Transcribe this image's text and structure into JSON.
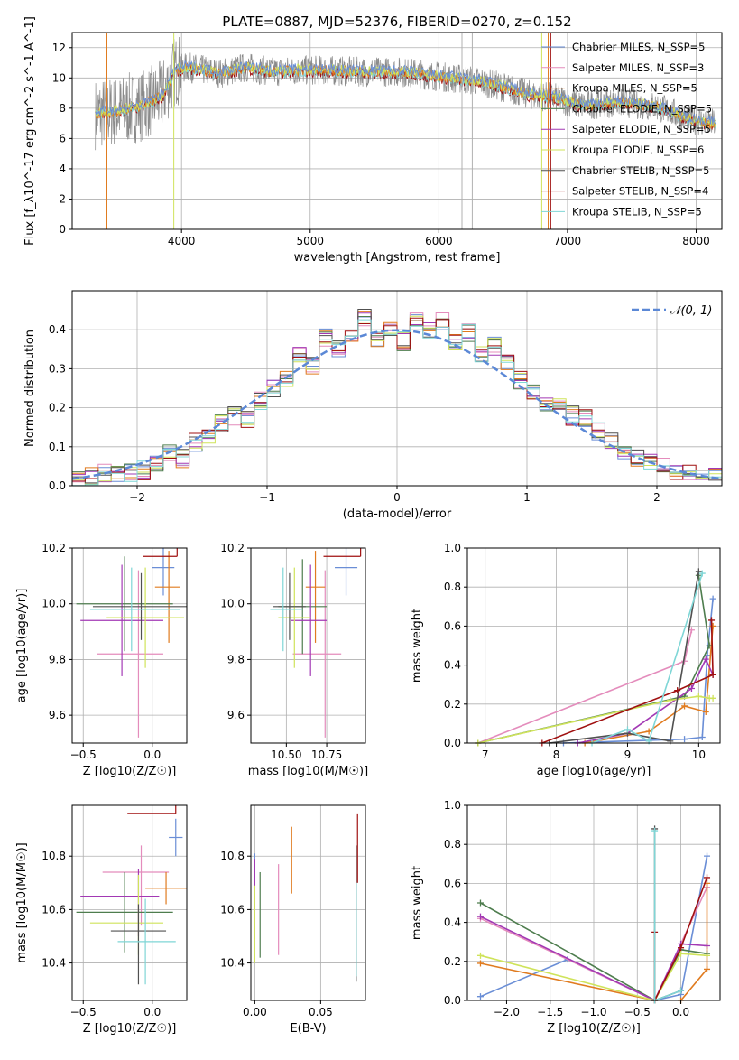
{
  "title": "PLATE=0887, MJD=52376, FIBERID=0270, z=0.152",
  "colors": [
    "#6a8ed6",
    "#e48cbc",
    "#e07b1f",
    "#4e7d4e",
    "#a238b4",
    "#cfe35a",
    "#505050",
    "#a01010",
    "#7fd6d6"
  ],
  "chart_data": [
    {
      "name": "spectrum",
      "type": "line",
      "xlabel": "wavelength [Angstrom, rest frame]",
      "ylabel": "Flux [f_λ10^-17 erg cm^-2 s^-1 A^-1]",
      "xlim": [
        3150,
        8200
      ],
      "ylim": [
        0,
        13
      ],
      "xticks": [
        4000,
        5000,
        6000,
        7000,
        8000
      ],
      "yticks": [
        0,
        2,
        4,
        6,
        8,
        10,
        12
      ],
      "legend": [
        "Chabrier MILES, N_SSP=5",
        "Salpeter MILES, N_SSP=3",
        "Kroupa MILES, N_SSP=5",
        "Chabrier ELODIE, N_SSP=5",
        "Salpeter ELODIE, N_SSP=5",
        "Kroupa ELODIE, N_SSP=6",
        "Chabrier STELIB, N_SSP=5",
        "Salpeter STELIB, N_SSP=4",
        "Kroupa STELIB, N_SSP=5"
      ],
      "legend_position": "right",
      "continuum": {
        "x": [
          3300,
          3500,
          3700,
          3850,
          3950,
          4050,
          4300,
          4500,
          4700,
          4900,
          5100,
          5400,
          5700,
          6000,
          6300,
          6500,
          6700,
          6900,
          7100,
          7400,
          7700,
          7900,
          8100
        ],
        "y": [
          7.6,
          7.8,
          8.2,
          8.8,
          10.5,
          10.7,
          10.3,
          10.7,
          10.4,
          10.5,
          10.5,
          10.4,
          10.4,
          10.1,
          9.8,
          9.4,
          8.9,
          8.7,
          8.2,
          8.4,
          8.1,
          7.4,
          7.0
        ]
      }
    },
    {
      "name": "residual_histogram",
      "type": "histogram",
      "xlabel": "(data-model)/error",
      "ylabel": "Normed distribution",
      "xlim": [
        -2.5,
        2.5
      ],
      "ylim": [
        0,
        0.5
      ],
      "xticks": [
        -2,
        -1,
        0,
        1,
        2
      ],
      "yticks": [
        0.0,
        0.1,
        0.2,
        0.3,
        0.4
      ],
      "legend": [
        "𝒩(0, 1)"
      ],
      "legend_position": "top-right",
      "bin_edges": [
        -2.5,
        -2.4,
        -2.3,
        -2.2,
        -2.1,
        -2.0,
        -1.9,
        -1.8,
        -1.7,
        -1.6,
        -1.5,
        -1.4,
        -1.3,
        -1.2,
        -1.1,
        -1.0,
        -0.9,
        -0.8,
        -0.7,
        -0.6,
        -0.5,
        -0.4,
        -0.3,
        -0.2,
        -0.1,
        0.0,
        0.1,
        0.2,
        0.3,
        0.4,
        0.5,
        0.6,
        0.7,
        0.8,
        0.9,
        1.0,
        1.1,
        1.2,
        1.3,
        1.4,
        1.5,
        1.6,
        1.7,
        1.8,
        1.9,
        2.0,
        2.1,
        2.2,
        2.3,
        2.4,
        2.5
      ],
      "base_density": [
        0.02,
        0.025,
        0.03,
        0.035,
        0.035,
        0.04,
        0.06,
        0.08,
        0.07,
        0.11,
        0.13,
        0.16,
        0.18,
        0.17,
        0.22,
        0.25,
        0.27,
        0.33,
        0.31,
        0.38,
        0.35,
        0.38,
        0.43,
        0.38,
        0.4,
        0.37,
        0.43,
        0.4,
        0.42,
        0.37,
        0.39,
        0.34,
        0.36,
        0.32,
        0.27,
        0.24,
        0.21,
        0.2,
        0.18,
        0.17,
        0.14,
        0.12,
        0.09,
        0.07,
        0.06,
        0.05,
        0.04,
        0.035,
        0.03,
        0.025
      ]
    },
    {
      "name": "age_vs_Z",
      "type": "scatter",
      "xlabel": "Z [log10(Z/Z☉)]",
      "ylabel": "age  [log10(age/yr)]",
      "xlim": [
        -0.58,
        0.25
      ],
      "ylim": [
        9.5,
        10.2
      ],
      "xticks": [
        -0.5,
        0.0
      ],
      "yticks": [
        9.6,
        9.8,
        10.0,
        10.2
      ],
      "points": [
        {
          "x": 0.08,
          "y": 10.13,
          "xerr": [
            0.08,
            0.08
          ],
          "yerr": [
            0.1,
            0.1
          ]
        },
        {
          "x": -0.1,
          "y": 9.82,
          "xerr": [
            0.3,
            0.18
          ],
          "yerr": [
            0.3,
            0.3
          ]
        },
        {
          "x": 0.12,
          "y": 10.06,
          "xerr": [
            0.1,
            0.08
          ],
          "yerr": [
            0.2,
            0.13
          ]
        },
        {
          "x": -0.2,
          "y": 10.0,
          "xerr": [
            0.35,
            0.35
          ],
          "yerr": [
            0.17,
            0.17
          ]
        },
        {
          "x": -0.22,
          "y": 9.94,
          "xerr": [
            0.3,
            0.3
          ],
          "yerr": [
            0.2,
            0.2
          ]
        },
        {
          "x": -0.05,
          "y": 9.95,
          "xerr": [
            0.28,
            0.28
          ],
          "yerr": [
            0.18,
            0.18
          ]
        },
        {
          "x": -0.08,
          "y": 9.99,
          "xerr": [
            0.35,
            0.35
          ],
          "yerr": [
            0.12,
            0.12
          ]
        },
        {
          "x": 0.18,
          "y": 10.17,
          "xerr": [
            0.25,
            0.0
          ],
          "yerr": [
            0.0,
            0.18
          ]
        },
        {
          "x": -0.15,
          "y": 9.98,
          "xerr": [
            0.3,
            0.35
          ],
          "yerr": [
            0.15,
            0.15
          ]
        }
      ]
    },
    {
      "name": "age_vs_mass",
      "type": "scatter",
      "xlabel": "mass [log10(M/M☉)]",
      "ylabel": "",
      "xlim": [
        10.28,
        10.99
      ],
      "ylim": [
        9.5,
        10.2
      ],
      "xticks": [
        10.5,
        10.75
      ],
      "yticks": [
        9.6,
        9.8,
        10.0,
        10.2
      ],
      "points": [
        {
          "x": 10.87,
          "y": 10.13,
          "xerr": [
            0.07,
            0.07
          ],
          "yerr": [
            0.1,
            0.1
          ]
        },
        {
          "x": 10.74,
          "y": 9.82,
          "xerr": [
            0.2,
            0.1
          ],
          "yerr": [
            0.3,
            0.3
          ]
        },
        {
          "x": 10.68,
          "y": 10.06,
          "xerr": [
            0.06,
            0.06
          ],
          "yerr": [
            0.2,
            0.13
          ]
        },
        {
          "x": 10.6,
          "y": 9.99,
          "xerr": [
            0.15,
            0.15
          ],
          "yerr": [
            0.17,
            0.17
          ]
        },
        {
          "x": 10.65,
          "y": 9.94,
          "xerr": [
            0.12,
            0.1
          ],
          "yerr": [
            0.2,
            0.2
          ]
        },
        {
          "x": 10.55,
          "y": 9.95,
          "xerr": [
            0.1,
            0.1
          ],
          "yerr": [
            0.18,
            0.18
          ]
        },
        {
          "x": 10.52,
          "y": 9.99,
          "xerr": [
            0.1,
            0.1
          ],
          "yerr": [
            0.12,
            0.12
          ]
        },
        {
          "x": 10.96,
          "y": 10.17,
          "xerr": [
            0.23,
            0.0
          ],
          "yerr": [
            0.0,
            0.24
          ]
        },
        {
          "x": 10.48,
          "y": 9.98,
          "xerr": [
            0.08,
            0.12
          ],
          "yerr": [
            0.15,
            0.15
          ]
        }
      ]
    },
    {
      "name": "mass_weight_vs_age",
      "type": "line",
      "xlabel": "age  [log10(age/yr)]",
      "ylabel": "mass weight",
      "xlim": [
        6.75,
        10.3
      ],
      "ylim": [
        0,
        1
      ],
      "xticks": [
        7,
        8,
        9,
        10
      ],
      "yticks": [
        0.0,
        0.2,
        0.4,
        0.6,
        0.8,
        1.0
      ],
      "series": [
        {
          "x": [
            8.1,
            9.8,
            10.05,
            10.12,
            10.2
          ],
          "y": [
            0.0,
            0.02,
            0.03,
            0.45,
            0.74
          ]
        },
        {
          "x": [
            6.9,
            9.8,
            9.9
          ],
          "y": [
            0.0,
            0.42,
            0.58
          ]
        },
        {
          "x": [
            8.4,
            9.3,
            9.8,
            10.1,
            10.2
          ],
          "y": [
            0.0,
            0.06,
            0.19,
            0.16,
            0.6
          ]
        },
        {
          "x": [
            6.9,
            9.8,
            10.15,
            10.0
          ],
          "y": [
            0.0,
            0.24,
            0.5,
            0.86
          ]
        },
        {
          "x": [
            8.3,
            9.0,
            9.9,
            10.1,
            10.2
          ],
          "y": [
            0.0,
            0.05,
            0.28,
            0.43,
            0.35
          ]
        },
        {
          "x": [
            6.9,
            9.6,
            10.0,
            10.15,
            10.2
          ],
          "y": [
            0.0,
            0.22,
            0.24,
            0.23,
            0.23
          ]
        },
        {
          "x": [
            7.9,
            9.0,
            9.6,
            10.0
          ],
          "y": [
            0.0,
            0.05,
            0.01,
            0.88
          ]
        },
        {
          "x": [
            7.8,
            9.7,
            10.2,
            10.18
          ],
          "y": [
            0.0,
            0.27,
            0.35,
            0.63
          ]
        },
        {
          "x": [
            8.5,
            9.0,
            9.3,
            10.05
          ],
          "y": [
            0.0,
            0.07,
            0.01,
            0.87
          ]
        }
      ]
    },
    {
      "name": "mass_vs_Z",
      "type": "scatter",
      "xlabel": "Z [log10(Z/Z☉)]",
      "ylabel": "mass [log10(M/M☉)]",
      "xlim": [
        -0.58,
        0.25
      ],
      "ylim": [
        10.26,
        10.99
      ],
      "xticks": [
        -0.5,
        0.0
      ],
      "yticks": [
        10.4,
        10.6,
        10.8
      ],
      "points": [
        {
          "x": 0.17,
          "y": 10.87,
          "xerr": [
            0.05,
            0.05
          ],
          "yerr": [
            0.07,
            0.07
          ]
        },
        {
          "x": -0.08,
          "y": 10.74,
          "xerr": [
            0.28,
            0.2
          ],
          "yerr": [
            0.2,
            0.1
          ]
        },
        {
          "x": 0.1,
          "y": 10.68,
          "xerr": [
            0.15,
            0.15
          ],
          "yerr": [
            0.06,
            0.06
          ]
        },
        {
          "x": -0.2,
          "y": 10.59,
          "xerr": [
            0.35,
            0.35
          ],
          "yerr": [
            0.15,
            0.15
          ]
        },
        {
          "x": -0.1,
          "y": 10.65,
          "xerr": [
            0.42,
            0.15
          ],
          "yerr": [
            0.15,
            0.1
          ]
        },
        {
          "x": -0.1,
          "y": 10.55,
          "xerr": [
            0.35,
            0.18
          ],
          "yerr": [
            0.12,
            0.18
          ]
        },
        {
          "x": -0.1,
          "y": 10.52,
          "xerr": [
            0.2,
            0.2
          ],
          "yerr": [
            0.2,
            0.1
          ]
        },
        {
          "x": 0.17,
          "y": 10.96,
          "xerr": [
            0.35,
            0.0
          ],
          "yerr": [
            0.0,
            0.23
          ]
        },
        {
          "x": -0.05,
          "y": 10.48,
          "xerr": [
            0.2,
            0.22
          ],
          "yerr": [
            0.16,
            0.16
          ]
        }
      ]
    },
    {
      "name": "mass_vs_EBV",
      "type": "scatter",
      "xlabel": "E(B-V)",
      "ylabel": "",
      "xlim": [
        -0.003,
        0.084
      ],
      "ylim": [
        10.26,
        10.99
      ],
      "xticks": [
        0.0,
        0.05
      ],
      "yticks": [
        10.4,
        10.6,
        10.8
      ],
      "points": [
        {
          "x": 0.0,
          "y": 10.72,
          "xerr": [
            0,
            0
          ],
          "yerr": [
            0.1,
            0.09
          ]
        },
        {
          "x": 0.018,
          "y": 10.62,
          "xerr": [
            0,
            0
          ],
          "yerr": [
            0.19,
            0.15
          ]
        },
        {
          "x": 0.028,
          "y": 10.79,
          "xerr": [
            0,
            0
          ],
          "yerr": [
            0.13,
            0.12
          ]
        },
        {
          "x": 0.004,
          "y": 10.56,
          "xerr": [
            0,
            0
          ],
          "yerr": [
            0.14,
            0.18
          ]
        },
        {
          "x": 0.0,
          "y": 10.63,
          "xerr": [
            0,
            0
          ],
          "yerr": [
            0.14,
            0.16
          ]
        },
        {
          "x": 0.0,
          "y": 10.52,
          "xerr": [
            0,
            0
          ],
          "yerr": [
            0.12,
            0.17
          ]
        },
        {
          "x": 0.077,
          "y": 10.6,
          "xerr": [
            0,
            0
          ],
          "yerr": [
            0.27,
            0.24
          ]
        },
        {
          "x": 0.078,
          "y": 10.7,
          "xerr": [
            0,
            0
          ],
          "yerr": [
            0.0,
            0.26
          ]
        },
        {
          "x": 0.077,
          "y": 10.55,
          "xerr": [
            0,
            0
          ],
          "yerr": [
            0.2,
            0.15
          ]
        }
      ]
    },
    {
      "name": "mass_weight_vs_Z",
      "type": "line",
      "xlabel": "Z [log10(Z/Z☉)]",
      "ylabel": "mass weight",
      "xlim": [
        -2.45,
        0.45
      ],
      "ylim": [
        0,
        1
      ],
      "xticks": [
        -2.0,
        -1.5,
        -1.0,
        -0.5,
        0.0
      ],
      "yticks": [
        0.0,
        0.2,
        0.4,
        0.6,
        0.8,
        1.0
      ],
      "series": [
        {
          "x": [
            -2.3,
            -1.3,
            -0.3,
            0.0,
            0.3
          ],
          "y": [
            0.02,
            0.21,
            0.0,
            0.03,
            0.74
          ]
        },
        {
          "x": [
            -2.3,
            -0.3,
            0.3
          ],
          "y": [
            0.42,
            0.0,
            0.58
          ]
        },
        {
          "x": [
            -2.3,
            -0.3,
            0.0,
            0.3,
            0.3
          ],
          "y": [
            0.19,
            0.0,
            0.0,
            0.16,
            0.6
          ]
        },
        {
          "x": [
            -2.3,
            -0.3,
            0.0,
            0.3
          ],
          "y": [
            0.5,
            0.0,
            0.26,
            0.24
          ]
        },
        {
          "x": [
            -2.3,
            -0.3,
            0.0,
            0.3
          ],
          "y": [
            0.43,
            0.0,
            0.29,
            0.28
          ]
        },
        {
          "x": [
            -2.3,
            -0.3,
            0.0,
            0.3
          ],
          "y": [
            0.23,
            0.0,
            0.24,
            0.23
          ]
        },
        {
          "x": [
            -0.3,
            -0.3,
            0.0
          ],
          "y": [
            0.88,
            0.0,
            0.05
          ]
        },
        {
          "x": [
            -0.3,
            -0.3,
            0.0,
            0.3
          ],
          "y": [
            0.35,
            0.0,
            0.27,
            0.63
          ]
        },
        {
          "x": [
            -0.3,
            -0.3,
            0.0
          ],
          "y": [
            0.87,
            0.0,
            0.05
          ]
        }
      ]
    }
  ]
}
